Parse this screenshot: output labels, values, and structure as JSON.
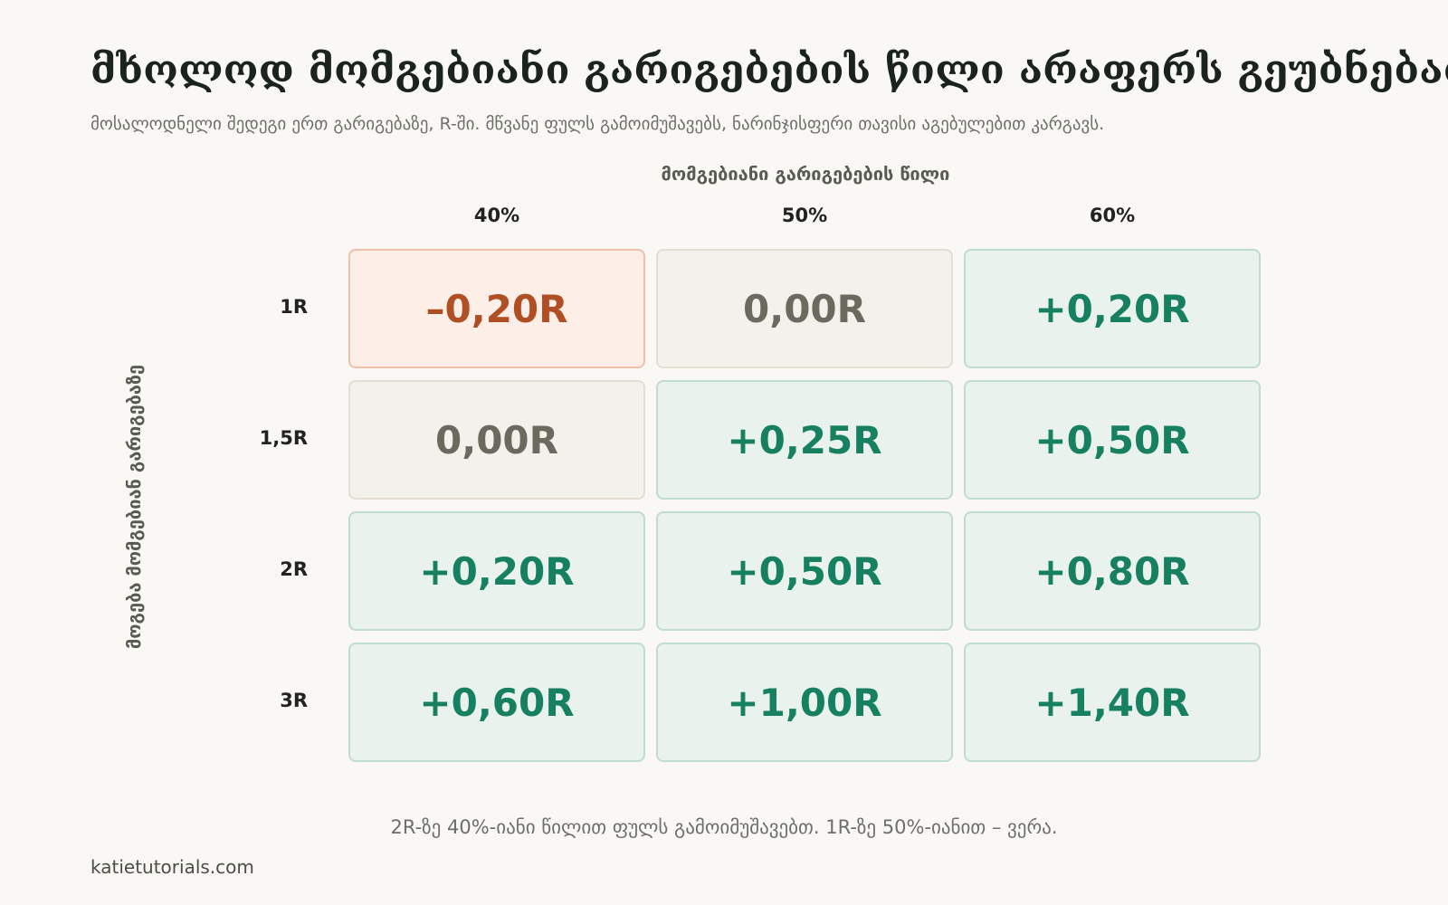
{
  "title": "მხოლოდ მომგებიანი გარიგებების წილი არაფერს გეუბნებათ",
  "subtitle": "მოსალოდნელი შედეგი ერთ გარიგებაზე, R-ში. მწვანე ფულს გამოიმუშავებს, ნარინჯისფერი თავისი აგებულებით კარგავს.",
  "footnote": "2R-ზე 40%-იანი წილით ფულს გამოიმუშავებთ. 1R-ზე 50%-იანით – ვერა.",
  "credit": "katietutorials.com",
  "colors": {
    "positive": "#178060",
    "neutral": "#6a6a5f",
    "negative": "#b04e24"
  },
  "chart_data": {
    "type": "heatmap",
    "xlabel": "მომგებიანი გარიგებების წილი",
    "ylabel": "მოგება მომგებიან გარიგებაზე",
    "x": [
      "40%",
      "50%",
      "60%"
    ],
    "y": [
      "1R",
      "1,5R",
      "2R",
      "3R"
    ],
    "values": [
      [
        -0.2,
        0.0,
        0.2
      ],
      [
        0.0,
        0.25,
        0.5
      ],
      [
        0.2,
        0.5,
        0.8
      ],
      [
        0.6,
        1.0,
        1.4
      ]
    ],
    "labels": [
      [
        "–0,20R",
        "0,00R",
        "+0,20R"
      ],
      [
        "0,00R",
        "+0,25R",
        "+0,50R"
      ],
      [
        "+0,20R",
        "+0,50R",
        "+0,80R"
      ],
      [
        "+0,60R",
        "+1,00R",
        "+1,40R"
      ]
    ]
  }
}
